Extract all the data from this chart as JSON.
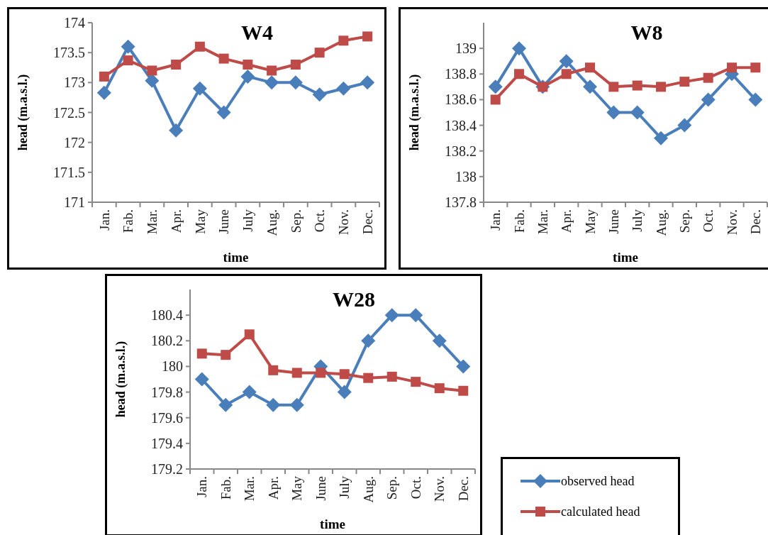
{
  "chart_data": [
    {
      "type": "line",
      "title": "W4",
      "xlabel": "time",
      "ylabel": "head (m.a.s.l.)",
      "categories": [
        "Jan.",
        "Fab.",
        "Mar.",
        "Apr.",
        "May",
        "June",
        "July",
        "Aug.",
        "Sep.",
        "Oct.",
        "Nov.",
        "Dec."
      ],
      "ylim": [
        171,
        174
      ],
      "yticks": [
        171,
        171.5,
        172,
        172.5,
        173,
        173.5,
        174
      ],
      "grid": false,
      "legend": false,
      "series": [
        {
          "color": "#4a7ebb",
          "marker": "diamond",
          "values": [
            172.83,
            173.6,
            173.03,
            172.2,
            172.9,
            172.5,
            173.1,
            173,
            173,
            172.8,
            172.9,
            173
          ]
        },
        {
          "color": "#be4b48",
          "marker": "square",
          "values": [
            173.1,
            173.37,
            173.2,
            173.3,
            173.6,
            173.4,
            173.3,
            173.2,
            173.3,
            173.5,
            173.7,
            173.77
          ]
        }
      ]
    },
    {
      "type": "line",
      "title": "W8",
      "xlabel": "time",
      "ylabel": "head (m.a.s.l.)",
      "categories": [
        "Jan.",
        "Fab.",
        "Mar.",
        "Apr.",
        "May",
        "June",
        "July",
        "Aug.",
        "Sep.",
        "Oct.",
        "Nov.",
        "Dec."
      ],
      "ylim": [
        137.8,
        139.2
      ],
      "yticks": [
        137.8,
        138,
        138.2,
        138.4,
        138.6,
        138.8,
        139
      ],
      "grid": false,
      "legend": false,
      "series": [
        {
          "color": "#4a7ebb",
          "marker": "diamond",
          "values": [
            138.7,
            139,
            138.7,
            138.9,
            138.7,
            138.5,
            138.5,
            138.3,
            138.4,
            138.6,
            138.8,
            138.6
          ]
        },
        {
          "color": "#be4b48",
          "marker": "square",
          "values": [
            138.6,
            138.8,
            138.7,
            138.8,
            138.85,
            138.7,
            138.71,
            138.7,
            138.74,
            138.77,
            138.85,
            138.85
          ]
        }
      ]
    },
    {
      "type": "line",
      "title": "W28",
      "xlabel": "time",
      "ylabel": "head (m.a.s.l.)",
      "categories": [
        "Jan.",
        "Fab.",
        "Mar.",
        "Apr.",
        "May",
        "June",
        "July",
        "Aug.",
        "Sep.",
        "Oct.",
        "Nov.",
        "Dec."
      ],
      "ylim": [
        179.2,
        180.6
      ],
      "yticks": [
        179.2,
        179.4,
        179.6,
        179.8,
        180,
        180.2,
        180.4
      ],
      "grid": false,
      "legend": "bottom right",
      "series": [
        {
          "name": "observed head",
          "color": "#4a7ebb",
          "marker": "diamond",
          "values": [
            179.9,
            179.7,
            179.8,
            179.7,
            179.7,
            180,
            179.8,
            180.2,
            180.4,
            180.4,
            180.2,
            180
          ]
        },
        {
          "name": "calculated head",
          "color": "#be4b48",
          "marker": "square",
          "values": [
            180.1,
            180.09,
            180.25,
            179.97,
            179.95,
            179.95,
            179.94,
            179.91,
            179.92,
            179.88,
            179.83,
            179.81
          ]
        }
      ]
    }
  ]
}
